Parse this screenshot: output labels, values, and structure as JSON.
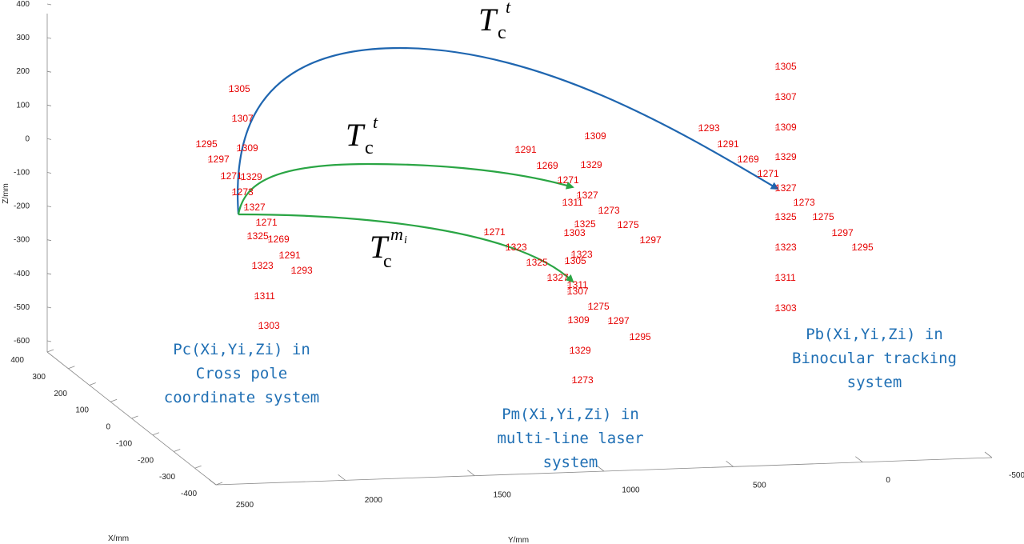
{
  "chart_data": {
    "type": "scatter",
    "dimension": "3d",
    "axes": {
      "x": {
        "label": "X/mm",
        "ticks": [
          "400",
          "300",
          "200",
          "100",
          "0",
          "-100",
          "-200",
          "-300",
          "-400"
        ],
        "range": [
          -400,
          400
        ]
      },
      "y": {
        "label": "Y/mm",
        "ticks": [
          "2500",
          "2000",
          "1500",
          "1000",
          "500",
          "0",
          "-500"
        ],
        "range": [
          -500,
          2500
        ]
      },
      "z": {
        "label": "Z/mm",
        "ticks": [
          "400",
          "300",
          "200",
          "100",
          "0",
          "-100",
          "-200",
          "-300",
          "-400",
          "-500",
          "-600"
        ],
        "range": [
          -600,
          400
        ]
      }
    },
    "grid": false,
    "marker_color": "#e60000",
    "groups": [
      {
        "name": "Pc(Xi,Yi,Zi) in Cross pole coordinate system",
        "label_lines": [
          "Pc(Xi,Yi,Zi) in",
          "Cross pole",
          "coordinate system"
        ],
        "points": [
          "1305",
          "1307",
          "1295",
          "1309",
          "1297",
          "1271",
          "1329",
          "1273",
          "1327",
          "1271",
          "1325",
          "1269",
          "1291",
          "1323",
          "1293",
          "1311",
          "1303"
        ]
      },
      {
        "name": "Pm(Xi,Yi,Zi) in multi-line laser system",
        "label_lines": [
          "Pm(Xi,Yi,Zi) in",
          "multi-line laser",
          "system"
        ],
        "points": [
          "1309",
          "1291",
          "1269",
          "1329",
          "1271",
          "1327",
          "1311",
          "1273",
          "1325",
          "1275",
          "1303",
          "1297",
          "1271",
          "1323",
          "1323",
          "1325",
          "1305",
          "1327",
          "1311",
          "1307",
          "1275",
          "1309",
          "1297",
          "1295",
          "1329",
          "1273"
        ]
      },
      {
        "name": "Pb(Xi,Yi,Zi) in Binocular tracking system",
        "label_lines": [
          "Pb(Xi,Yi,Zi) in",
          "Binocular tracking",
          "system"
        ],
        "points": [
          "1305",
          "1307",
          "1309",
          "1293",
          "1291",
          "1329",
          "1269",
          "1271",
          "1327",
          "1273",
          "1325",
          "1275",
          "1297",
          "1323",
          "1295",
          "1311",
          "1303"
        ]
      }
    ],
    "transforms": [
      {
        "name": "Tc^t",
        "symbol": "T",
        "subscript": "c",
        "superscript": "t",
        "from": "Pc",
        "to": "Pb",
        "color": "#1f66b0"
      },
      {
        "name": "Tc^t",
        "symbol": "T",
        "subscript": "c",
        "superscript": "t",
        "from": "Pc",
        "to": "Pm",
        "color": "#2aa544"
      },
      {
        "name": "Tc^mi",
        "symbol": "T",
        "subscript": "c",
        "superscript": "m",
        "superscript_sub": "i",
        "from": "Pc",
        "to": "Pm",
        "color": "#2aa544"
      }
    ]
  }
}
